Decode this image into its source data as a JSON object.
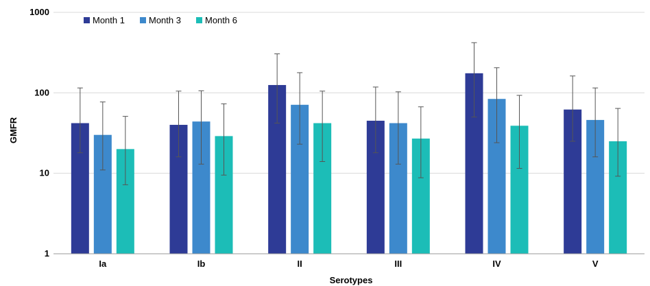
{
  "chart_data": {
    "type": "bar",
    "title": "",
    "xlabel": "Serotypes",
    "ylabel": "GMFR",
    "y_scale": "log",
    "ylim": [
      1,
      1000
    ],
    "y_ticks": [
      1,
      10,
      100,
      1000
    ],
    "y_tick_labels": [
      "1",
      "10",
      "100",
      "1000"
    ],
    "grid": "horizontal",
    "legend_position": "top-left",
    "categories": [
      "Ia",
      "Ib",
      "II",
      "III",
      "IV",
      "V"
    ],
    "series": [
      {
        "name": "Month 1",
        "color": "#2E3B96",
        "values": [
          42,
          40,
          125,
          45,
          175,
          62
        ],
        "error_low": [
          18,
          16,
          42,
          18,
          50,
          25
        ],
        "error_high": [
          115,
          105,
          305,
          118,
          420,
          162
        ]
      },
      {
        "name": "Month 3",
        "color": "#3D89CC",
        "values": [
          30,
          44,
          71,
          42,
          84,
          46
        ],
        "error_low": [
          11,
          13,
          23,
          13,
          24,
          16
        ],
        "error_high": [
          77,
          106,
          178,
          103,
          205,
          115
        ]
      },
      {
        "name": "Month 6",
        "color": "#1CBDB7",
        "values": [
          20,
          29,
          42,
          27,
          39,
          25
        ],
        "error_low": [
          7.2,
          9.5,
          14,
          8.8,
          11.5,
          9.2
        ],
        "error_high": [
          51,
          73,
          105,
          67,
          93,
          64
        ]
      }
    ]
  }
}
